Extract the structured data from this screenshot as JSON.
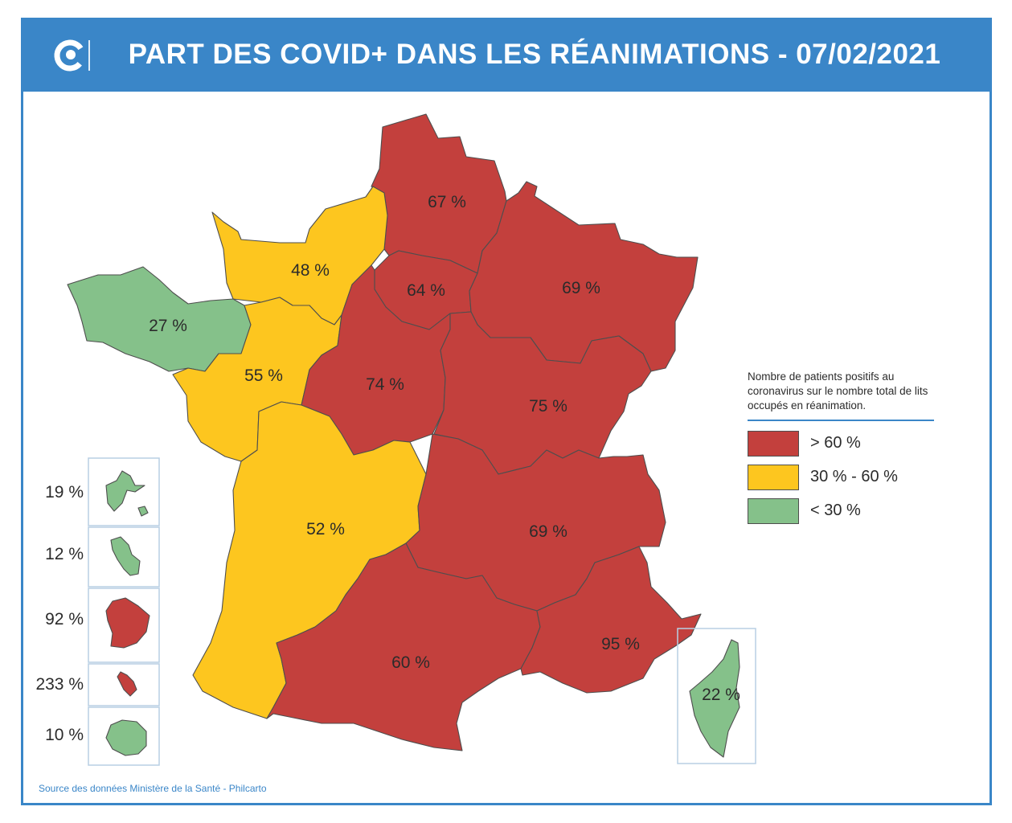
{
  "title": "PART DES COVID+ DANS LES RÉANIMATIONS - 07/02/2021",
  "colors": {
    "red": "#c3403d",
    "yellow": "#fdc61f",
    "green": "#85c18a",
    "accent": "#3a86c8"
  },
  "regions": [
    {
      "name": "Hauts-de-France",
      "value": "67 %",
      "category": "high"
    },
    {
      "name": "Normandie",
      "value": "48 %",
      "category": "mid"
    },
    {
      "name": "Île-de-France",
      "value": "64 %",
      "category": "high"
    },
    {
      "name": "Grand Est",
      "value": "69 %",
      "category": "high"
    },
    {
      "name": "Bretagne",
      "value": "27 %",
      "category": "low"
    },
    {
      "name": "Pays de la Loire",
      "value": "55 %",
      "category": "mid"
    },
    {
      "name": "Centre-Val de Loire",
      "value": "74 %",
      "category": "high"
    },
    {
      "name": "Bourgogne-Franche-Comté",
      "value": "75 %",
      "category": "high"
    },
    {
      "name": "Nouvelle-Aquitaine",
      "value": "52 %",
      "category": "mid"
    },
    {
      "name": "Auvergne-Rhône-Alpes",
      "value": "69 %",
      "category": "high"
    },
    {
      "name": "Occitanie",
      "value": "60 %",
      "category": "high"
    },
    {
      "name": "Provence-Alpes-Côte d'Azur",
      "value": "95 %",
      "category": "high"
    },
    {
      "name": "Corse",
      "value": "22 %",
      "category": "low"
    }
  ],
  "overseas": [
    {
      "name": "Guadeloupe",
      "value": "19 %",
      "category": "low"
    },
    {
      "name": "Martinique",
      "value": "12 %",
      "category": "low"
    },
    {
      "name": "Guyane",
      "value": "92 %",
      "category": "high"
    },
    {
      "name": "Mayotte",
      "value": "233 %",
      "category": "high"
    },
    {
      "name": "La Réunion",
      "value": "10 %",
      "category": "low"
    }
  ],
  "legend": {
    "description": "Nombre de patients positifs au coronavirus sur le nombre total de lits occupés en réanimation.",
    "items": [
      {
        "label": "> 60 %",
        "category": "high"
      },
      {
        "label": "30 % - 60 %",
        "category": "mid"
      },
      {
        "label": "< 30 %",
        "category": "low"
      }
    ]
  },
  "source": "Source des données Ministère de la Santé - Philcarto"
}
